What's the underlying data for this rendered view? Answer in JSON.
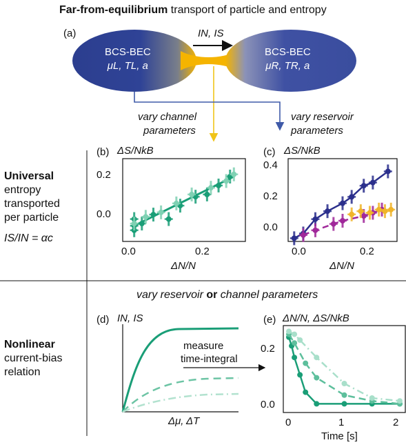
{
  "title": {
    "bold": "Far-from-equilibrium",
    "rest": " transport of particle and entropy"
  },
  "panel_a": {
    "label": "(a)",
    "left": {
      "line1": "BCS-BEC",
      "line2": "μL, TL, a"
    },
    "right": {
      "line1": "BCS-BEC",
      "line2": "μR, TR, a"
    },
    "currents": "IN, IS",
    "channel_arrow_label": [
      "vary channel",
      "parameters"
    ],
    "reservoir_arrow_label": [
      "vary reservoir",
      "parameters"
    ],
    "colors": {
      "reservoir": "#2c3e8f",
      "channel": "#f5b400",
      "channel_arrow": "#f0c419",
      "reservoir_arrow": "#3f5aa8"
    }
  },
  "row1": {
    "heading_bold": "Universal",
    "lines": [
      "entropy",
      "transported",
      "per particle",
      "IS/IN = αc"
    ]
  },
  "row2": {
    "top_label": {
      "a": "vary reservoir ",
      "b": "or",
      "c": " channel parameters"
    },
    "heading_bold": "Nonlinear",
    "lines": [
      "current-bias",
      "relation"
    ]
  },
  "panel_b": {
    "label": "(b)",
    "ylabel": "ΔS/NkB",
    "xlabel": "ΔN/N",
    "xticks": [
      "0.0",
      "0.2"
    ],
    "yticks": [
      "0.0",
      "0.2"
    ]
  },
  "panel_c": {
    "label": "(c)",
    "ylabel": "ΔS/NkB",
    "xlabel": "ΔN/N",
    "xticks": [
      "0.0",
      "0.2"
    ],
    "yticks": [
      "0.0",
      "0.2",
      "0.4"
    ]
  },
  "panel_d": {
    "label": "(d)",
    "ylabel": "IN, IS",
    "xlabel": "Δμ, ΔT",
    "annotation": [
      "measure",
      "time-integral"
    ]
  },
  "panel_e": {
    "label": "(e)",
    "ylabel": "ΔN/N, ΔS/NkB",
    "xlabel": "Time [s]",
    "xticks": [
      "0",
      "1",
      "2"
    ],
    "yticks": [
      "0.0",
      "0.2"
    ]
  },
  "chart_data": [
    {
      "panel": "(b)",
      "type": "scatter",
      "xlabel": "ΔN/N",
      "ylabel": "ΔS/NkB",
      "xlim": [
        -0.03,
        0.29
      ],
      "ylim": [
        -0.1,
        0.27
      ],
      "series": [
        {
          "color": "#1a9e77",
          "x": [
            0.0,
            0.0,
            0.0,
            0.02,
            0.05,
            0.09,
            0.12,
            0.16,
            0.19,
            0.22,
            0.25
          ],
          "y": [
            -0.05,
            0.0,
            -0.03,
            -0.02,
            0.02,
            0.0,
            0.06,
            0.1,
            0.11,
            0.15,
            0.19
          ]
        },
        {
          "color": "#7fd1b3",
          "x": [
            0.0,
            0.03,
            0.07,
            0.11,
            0.15,
            0.2,
            0.24,
            0.26
          ],
          "y": [
            -0.02,
            0.01,
            0.03,
            0.07,
            0.11,
            0.14,
            0.17,
            0.2
          ]
        }
      ],
      "fit": {
        "x": [
          0.0,
          0.26
        ],
        "y": [
          -0.03,
          0.19
        ]
      }
    },
    {
      "panel": "(c)",
      "type": "scatter",
      "xlabel": "ΔN/N",
      "ylabel": "ΔS/NkB",
      "xlim": [
        -0.05,
        0.31
      ],
      "ylim": [
        -0.08,
        0.44
      ],
      "series": [
        {
          "color": "#2b2f8c",
          "x": [
            -0.03,
            0.0,
            0.04,
            0.08,
            0.13,
            0.16,
            0.2,
            0.23,
            0.28
          ],
          "y": [
            -0.06,
            -0.03,
            0.06,
            0.11,
            0.16,
            0.2,
            0.27,
            0.29,
            0.36
          ]
        },
        {
          "color": "#a0289a",
          "x": [
            0.0,
            0.04,
            0.1,
            0.13,
            0.2,
            0.23,
            0.26
          ],
          "y": [
            -0.04,
            -0.01,
            0.03,
            0.05,
            0.08,
            0.1,
            0.12
          ]
        },
        {
          "color": "#f0b42a",
          "x": [
            0.16,
            0.19,
            0.22,
            0.25,
            0.27,
            0.29
          ],
          "y": [
            0.09,
            0.11,
            0.1,
            0.12,
            0.11,
            0.12
          ]
        }
      ]
    },
    {
      "panel": "(e)",
      "type": "line",
      "xlabel": "Time [s]",
      "ylabel": "ΔN/N, ΔS/NkB",
      "xlim": [
        -0.1,
        2.1
      ],
      "ylim": [
        -0.03,
        0.27
      ],
      "series": [
        {
          "color": "#1a9e77",
          "x": [
            0.0,
            0.05,
            0.1,
            0.2,
            0.3,
            0.5,
            1.0,
            1.5,
            2.0
          ],
          "y": [
            0.23,
            0.2,
            0.16,
            0.1,
            0.04,
            0.0,
            0.0,
            0.0,
            0.0
          ]
        },
        {
          "color": "#5dbf9c",
          "x": [
            0.0,
            0.1,
            0.3,
            0.5,
            1.0,
            1.5,
            2.0
          ],
          "y": [
            0.24,
            0.21,
            0.14,
            0.09,
            0.03,
            0.01,
            0.0
          ]
        },
        {
          "color": "#a8dfca",
          "x": [
            0.0,
            0.1,
            0.2,
            0.5,
            1.0,
            1.5,
            2.0
          ],
          "y": [
            0.25,
            0.24,
            0.22,
            0.16,
            0.07,
            0.02,
            0.01
          ]
        }
      ]
    }
  ]
}
